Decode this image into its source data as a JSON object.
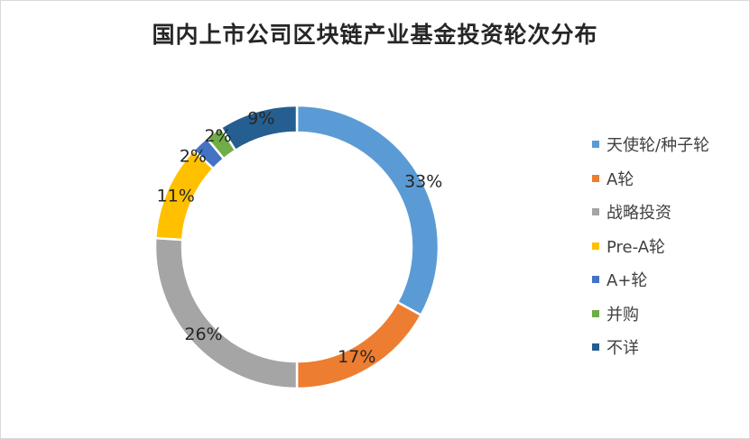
{
  "chart_data": {
    "type": "pie",
    "title": "国内上市公司区块链产业基金投资轮次分布",
    "hole": "donut",
    "legend_position": "right",
    "categories": [
      "天使轮/种子轮",
      "A轮",
      "战略投资",
      "Pre-A轮",
      "A+轮",
      "并购",
      "不详"
    ],
    "values": [
      33,
      17,
      26,
      11,
      2,
      2,
      9
    ],
    "value_labels": [
      "33%",
      "17%",
      "26%",
      "11%",
      "2%",
      "2%",
      "9%"
    ],
    "colors": [
      "#5B9BD5",
      "#ED7D31",
      "#A5A5A5",
      "#FFC000",
      "#4472C4",
      "#70AD47",
      "#255E91"
    ]
  }
}
